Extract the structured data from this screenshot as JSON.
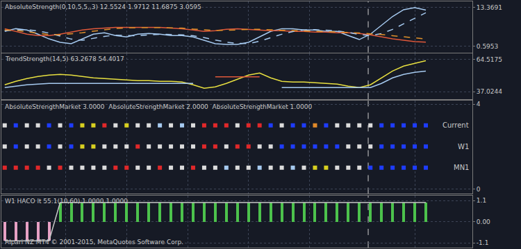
{
  "chart_data": [
    {
      "type": "line",
      "title": "AbsoluteStrength(0,10,5,5,,3) 12.5524 1.9712 11.6875 3.0595",
      "x": [
        0,
        1,
        2,
        3,
        4,
        5,
        6,
        7,
        8,
        9,
        10,
        11,
        12,
        13,
        14,
        15,
        16,
        17,
        18,
        19,
        20,
        21,
        22,
        23,
        24,
        25,
        26,
        27,
        28,
        29,
        30,
        31,
        32,
        33,
        34,
        35,
        36,
        37,
        38
      ],
      "xlim": [
        -0.3,
        42.2
      ],
      "xticks": [
        5.5,
        11,
        16.5,
        22,
        27.5,
        37
      ],
      "separator": 32.8,
      "ylim": [
        -1.4,
        15.4
      ],
      "yticks": [
        0.5953,
        13.3691
      ],
      "grid": true,
      "tick_labels": "y",
      "series": [
        {
          "color": "#a6caf0",
          "line_style": "solid",
          "values": [
            5.52,
            6.42,
            5.97,
            4.63,
            3.06,
            1.94,
            1.49,
            3.06,
            4.63,
            5.08,
            4.18,
            3.73,
            4.63,
            4.85,
            4.63,
            4.18,
            4.18,
            3.73,
            2.61,
            1.49,
            1.27,
            1.27,
            1.94,
            3.73,
            5.52,
            6.42,
            6.42,
            5.97,
            5.97,
            5.52,
            5.52,
            4.18,
            2.84,
            4.63,
            7.54,
            10.45,
            12.69,
            13.3691,
            12.5524
          ]
        },
        {
          "color": "#e0583a",
          "line_style": "solid",
          "values": [
            6.42,
            5.52,
            4.63,
            4.18,
            4.18,
            4.63,
            5.3,
            5.97,
            6.42,
            6.64,
            6.87,
            6.87,
            6.87,
            6.87,
            6.87,
            6.64,
            6.42,
            5.97,
            5.52,
            5.75,
            6.2,
            6.42,
            6.2,
            5.97,
            5.75,
            5.75,
            5.52,
            5.52,
            5.3,
            5.3,
            5.08,
            5.08,
            4.85,
            4.4,
            3.73,
            3.06,
            2.61,
            2.16,
            1.9712
          ]
        },
        {
          "color": "#a6caf0",
          "line_style": "dash",
          "values": [
            5.8,
            6.0,
            6.1,
            5.7,
            5.0,
            4.0,
            3.0,
            2.6,
            3.2,
            3.9,
            4.3,
            4.2,
            4.1,
            4.4,
            4.6,
            4.5,
            4.4,
            4.1,
            3.5,
            2.7,
            2.0,
            1.6,
            1.5,
            2.3,
            3.4,
            4.6,
            5.5,
            6.0,
            6.1,
            5.9,
            5.7,
            5.2,
            4.5,
            4.2,
            4.8,
            6.2,
            8.0,
            9.9,
            11.6875
          ]
        },
        {
          "color": "#e0902a",
          "line_style": "dash",
          "values": [
            6.0,
            5.9,
            5.4,
            4.9,
            4.5,
            4.4,
            4.7,
            5.1,
            5.6,
            6.1,
            6.5,
            6.7,
            6.8,
            6.8,
            6.8,
            6.7,
            6.6,
            6.3,
            6.0,
            5.8,
            5.9,
            6.1,
            6.2,
            6.2,
            6.0,
            5.9,
            5.8,
            5.7,
            5.6,
            5.4,
            5.3,
            5.2,
            5.0,
            4.8,
            4.5,
            4.1,
            3.7,
            3.4,
            3.0595
          ]
        }
      ]
    },
    {
      "type": "line",
      "title": "TrendStrength(14,5) 63.2678 54.4017",
      "x": [
        0,
        1,
        2,
        3,
        4,
        5,
        6,
        7,
        8,
        9,
        10,
        11,
        12,
        13,
        14,
        15,
        16,
        17,
        18,
        19,
        20,
        21,
        22,
        23,
        24,
        25,
        26,
        27,
        28,
        29,
        30,
        31,
        32,
        33,
        34,
        35,
        36,
        37,
        38
      ],
      "xlim": [
        -0.3,
        42.2
      ],
      "xticks": [
        5.5,
        11,
        16.5,
        22,
        27.5,
        37
      ],
      "separator": 32.8,
      "ylim": [
        30.6,
        69.2
      ],
      "yticks": [
        37.0244,
        64.5175
      ],
      "grid": true,
      "tick_labels": "y",
      "series": [
        {
          "color": "#e8e040",
          "line_style": "solid",
          "values": [
            42.87,
            45.8,
            48.14,
            49.89,
            51.07,
            51.65,
            51.07,
            49.89,
            48.72,
            48.14,
            47.55,
            46.97,
            46.38,
            46.38,
            45.8,
            45.8,
            45.21,
            42.87,
            39.95,
            41.12,
            44.04,
            47.55,
            51.07,
            52.82,
            48.72,
            45.8,
            45.21,
            45.21,
            44.63,
            44.04,
            43.46,
            41.7,
            40.53,
            42.87,
            48.72,
            54.57,
            58.67,
            61.01,
            63.2678
          ]
        },
        {
          "color": "#a6caf0",
          "line_style": "solid",
          "values": [
            40.53,
            41.7,
            42.87,
            43.46,
            44.04,
            44.04,
            44.04,
            44.04,
            44.04,
            44.04,
            44.04,
            44.04,
            44.04,
            44.04,
            44.04,
            44.04,
            44.04,
            44.04,
            null,
            null,
            null,
            null,
            null,
            null,
            null,
            40.53,
            40.53,
            40.53,
            40.53,
            40.53,
            40.53,
            40.53,
            40.53,
            40.53,
            44.04,
            48.72,
            51.65,
            53.4,
            54.4017
          ]
        },
        {
          "color": "#e0583a",
          "line_style": "solid",
          "values": [
            null,
            null,
            null,
            null,
            null,
            null,
            null,
            null,
            null,
            null,
            null,
            null,
            null,
            null,
            null,
            null,
            null,
            null,
            null,
            49.6,
            49.6,
            49.6,
            49.6,
            49.6,
            null,
            null,
            null,
            null,
            null,
            null,
            null,
            null,
            null,
            null,
            null,
            null,
            null,
            null,
            null
          ]
        }
      ]
    },
    {
      "type": "scatter",
      "title": "AbsoluteStrengthMarket 3.0000  AbsoluteStrengthMarket 2.0000  AbsoluteStrengthMarket 1.0000",
      "x": [
        0,
        1,
        2,
        3,
        4,
        5,
        6,
        7,
        8,
        9,
        10,
        11,
        12,
        13,
        14,
        15,
        16,
        17,
        18,
        19,
        20,
        21,
        22,
        23,
        24,
        25,
        26,
        27,
        28,
        29,
        30,
        31,
        32,
        33,
        34,
        35,
        36,
        37,
        38
      ],
      "xlim": [
        -0.3,
        42.2
      ],
      "xticks": [
        5.5,
        11,
        16.5,
        22,
        27.5,
        37
      ],
      "separator": 32.8,
      "ylim": [
        -0.23,
        4.16
      ],
      "yticks": [
        0,
        4
      ],
      "grid": true,
      "tick_labels": "y",
      "marker": "square",
      "series": [
        {
          "name": "Current",
          "values": [
            3,
            3,
            3,
            3,
            3,
            3,
            3,
            3,
            3,
            3,
            3,
            3,
            3,
            3,
            3,
            3,
            3,
            3,
            3,
            3,
            3,
            3,
            3,
            3,
            3,
            3,
            3,
            3,
            3,
            3,
            3,
            3,
            3,
            3,
            3,
            3,
            3,
            3,
            3
          ],
          "colors": [
            "#dcdcdc",
            "#1e3cff",
            "#dcdcdc",
            "#dcdcdc",
            "#1e3cff",
            "#dcdcdc",
            "#1e3cff",
            "#d8d020",
            "#d8d020",
            "#e0282a",
            "#dcdcdc",
            "#d8d020",
            "#dcdcdc",
            "#dcdcdc",
            "#a6caf0",
            "#dcdcdc",
            "#a6caf0",
            "#dcdcdc",
            "#e0282a",
            "#e0282a",
            "#e0282a",
            "#dcdcdc",
            "#e0282a",
            "#e0282a",
            "#1e3cff",
            "#dcdcdc",
            "#1e3cff",
            "#1e3cff",
            "#e08a2a",
            "#1e3cff",
            "#dcdcdc",
            "#dcdcdc",
            "#dcdcdc",
            "#dcdcdc",
            "#1e3cff",
            "#1e3cff",
            "#1e3cff",
            "#1e3cff",
            "#1e3cff"
          ]
        },
        {
          "name": "W1",
          "values": [
            2,
            2,
            2,
            2,
            2,
            2,
            2,
            2,
            2,
            2,
            2,
            2,
            2,
            2,
            2,
            2,
            2,
            2,
            2,
            2,
            2,
            2,
            2,
            2,
            2,
            2,
            2,
            2,
            2,
            2,
            2,
            2,
            2,
            2,
            2,
            2,
            2,
            2,
            2
          ],
          "colors": [
            "#dcdcdc",
            "#1e3cff",
            "#dcdcdc",
            "#dcdcdc",
            "#1e3cff",
            "#dcdcdc",
            "#1e3cff",
            "#d8d020",
            "#d8d020",
            "#dcdcdc",
            "#dcdcdc",
            "#dcdcdc",
            "#e0282a",
            "#dcdcdc",
            "#dcdcdc",
            "#dcdcdc",
            "#dcdcdc",
            "#dcdcdc",
            "#e0282a",
            "#e0282a",
            "#dcdcdc",
            "#e0282a",
            "#e0282a",
            "#dcdcdc",
            "#dcdcdc",
            "#1e3cff",
            "#1e3cff",
            "#1e3cff",
            "#1e3cff",
            "#1e3cff",
            "#1e3cff",
            "#dcdcdc",
            "#dcdcdc",
            "#dcdcdc",
            "#1e3cff",
            "#1e3cff",
            "#1e3cff",
            "#1e3cff",
            "#1e3cff"
          ]
        },
        {
          "name": "MN1",
          "values": [
            1,
            1,
            1,
            1,
            1,
            1,
            1,
            1,
            1,
            1,
            1,
            1,
            1,
            1,
            1,
            1,
            1,
            1,
            1,
            1,
            1,
            1,
            1,
            1,
            1,
            1,
            1,
            1,
            1,
            1,
            1,
            1,
            1,
            1,
            1,
            1,
            1,
            1,
            1
          ],
          "colors": [
            "#e0282a",
            "#e0282a",
            "#e0282a",
            "#e0282a",
            "#dcdcdc",
            "#e0282a",
            "#dcdcdc",
            "#dcdcdc",
            "#dcdcdc",
            "#dcdcdc",
            "#e0282a",
            "#e0282a",
            "#dcdcdc",
            "#dcdcdc",
            "#e0282a",
            "#dcdcdc",
            "#dcdcdc",
            "#e0282a",
            "#dcdcdc",
            "#dcdcdc",
            "#a6caf0",
            "#dcdcdc",
            "#dcdcdc",
            "#a6caf0",
            "#dcdcdc",
            "#dcdcdc",
            "#a6caf0",
            "#dcdcdc",
            "#d8d020",
            "#d8d020",
            "#dcdcdc",
            "#dcdcdc",
            "#dcdcdc",
            "#1e3cff",
            "#1e3cff",
            "#1e3cff",
            "#1e3cff",
            "#1e3cff",
            "#1e3cff"
          ]
        }
      ]
    },
    {
      "type": "bar",
      "title": "W1 HACO lt 55.1(10,60) 1.0000 1.0000",
      "footer": "Alpari NZ MT4 © 2001-2015, MetaQuotes Software Corp.",
      "x": [
        0,
        1,
        2,
        3,
        4,
        5,
        6,
        7,
        8,
        9,
        10,
        11,
        12,
        13,
        14,
        15,
        16,
        17,
        18,
        19,
        20,
        21,
        22,
        23,
        24,
        25,
        26,
        27,
        28,
        29,
        30,
        31,
        32,
        33,
        34,
        35,
        36,
        37,
        38
      ],
      "xlim": [
        -0.3,
        42.2
      ],
      "xticks": [
        5.5,
        11,
        16.5,
        22,
        27.5,
        37
      ],
      "separator": 32.8,
      "ylim": [
        -1.35,
        1.35
      ],
      "yticks": [
        -1.1,
        {
          "value": 0,
          "label": "0.00"
        },
        1.1
      ],
      "grid": true,
      "tick_labels": "y",
      "series": [
        {
          "type": "bar",
          "values": [
            -1,
            -1,
            -1,
            -1,
            -1,
            1,
            1,
            1,
            1,
            1,
            1,
            1,
            1,
            1,
            1,
            1,
            1,
            1,
            1,
            1,
            1,
            1,
            1,
            1,
            1,
            1,
            1,
            1,
            1,
            1,
            1,
            1,
            1,
            1,
            1,
            1,
            1,
            1,
            1
          ],
          "colors": [
            "#e6a0c4",
            "#e6a0c4",
            "#e6a0c4",
            "#e6a0c4",
            "#e6a0c4",
            "#4cc24c",
            "#4cc24c",
            "#4cc24c",
            "#4cc24c",
            "#4cc24c",
            "#4cc24c",
            "#4cc24c",
            "#4cc24c",
            "#4cc24c",
            "#4cc24c",
            "#4cc24c",
            "#4cc24c",
            "#4cc24c",
            "#4cc24c",
            "#4cc24c",
            "#4cc24c",
            "#4cc24c",
            "#4cc24c",
            "#4cc24c",
            "#4cc24c",
            "#4cc24c",
            "#4cc24c",
            "#4cc24c",
            "#4cc24c",
            "#4cc24c",
            "#4cc24c",
            "#4cc24c",
            "#4cc24c",
            "#4cc24c",
            "#4cc24c",
            "#4cc24c",
            "#4cc24c",
            "#4cc24c",
            "#4cc24c"
          ]
        },
        {
          "type": "line",
          "color": "#c8c8c8",
          "line_style": "solid",
          "values": [
            -1,
            -1,
            -1,
            -1,
            -1,
            1,
            1,
            1,
            1,
            1,
            1,
            1,
            1,
            1,
            1,
            1,
            1,
            1,
            1,
            1,
            1,
            1,
            1,
            1,
            1,
            1,
            1,
            1,
            1,
            1,
            1,
            1,
            1,
            1,
            1,
            1,
            1,
            1,
            1
          ]
        }
      ]
    }
  ]
}
